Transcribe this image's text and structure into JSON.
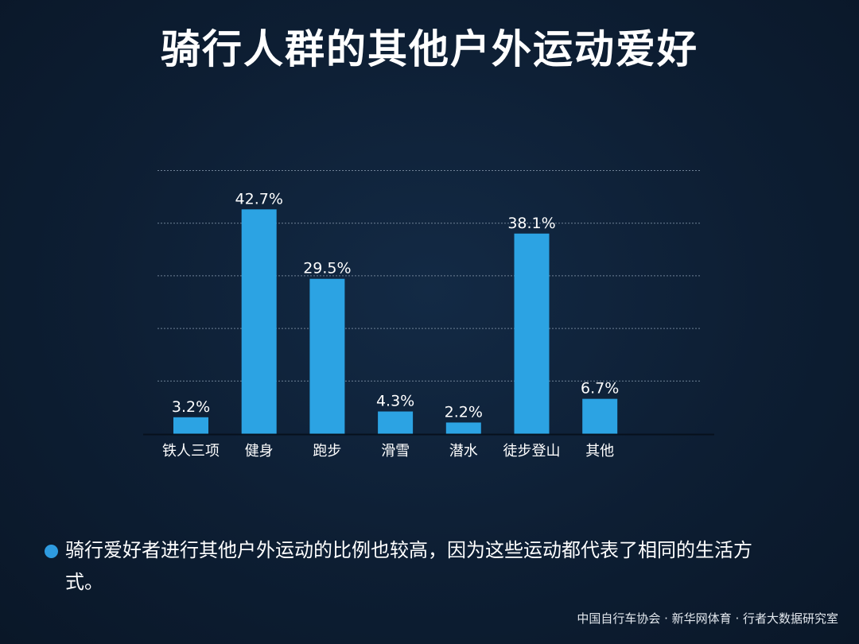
{
  "title": "骑行人群的其他户外运动爱好",
  "chart_data": {
    "type": "bar",
    "title": "骑行人群的其他户外运动爱好",
    "categories": [
      "铁人三项",
      "健身",
      "跑步",
      "滑雪",
      "潜水",
      "徒步登山",
      "其他"
    ],
    "values": [
      3.2,
      42.7,
      29.5,
      4.3,
      2.2,
      38.1,
      6.7
    ],
    "labels": [
      "3.2%",
      "42.7%",
      "29.5%",
      "4.3%",
      "2.2%",
      "38.1%",
      "6.7%"
    ],
    "xlabel": "",
    "ylabel": "",
    "ylim": [
      0,
      50
    ],
    "gridlines": [
      10,
      20,
      30,
      40,
      50
    ],
    "grid": true,
    "bar_color": "#2ca3e3"
  },
  "note": {
    "text": "骑行爱好者进行其他户外运动的比例也较高，因为这些运动都代表了相同的生活方式。",
    "bullet_color": "#2e9be0"
  },
  "source": "中国自行车协会 · 新华网体育 · 行者大数据研究室"
}
